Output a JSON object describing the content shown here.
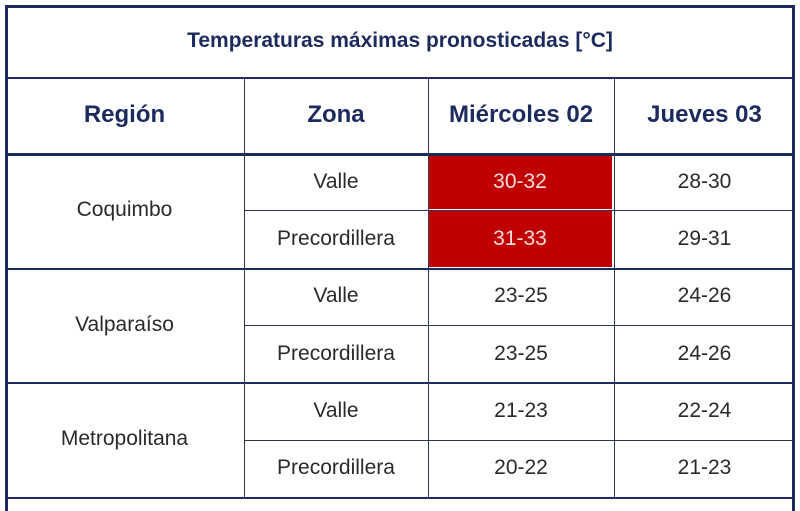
{
  "table": {
    "title": "Temperaturas máximas pronosticadas [°C]",
    "columns": [
      "Región",
      "Zona",
      "Miércoles 02",
      "Jueves 03"
    ],
    "regions": [
      {
        "name": "Coquimbo",
        "rows": [
          {
            "zone": "Valle",
            "cells": [
              {
                "text": "30-32",
                "fill": "#c00000"
              },
              "28-30"
            ]
          },
          {
            "zone": "Precordillera",
            "cells": [
              {
                "text": "31-33",
                "fill": "#c00000"
              },
              "29-31"
            ]
          }
        ]
      },
      {
        "name": "Valparaíso",
        "rows": [
          {
            "zone": "Valle",
            "cells": [
              "23-25",
              "24-26"
            ]
          },
          {
            "zone": "Precordillera",
            "cells": [
              "23-25",
              "24-26"
            ]
          }
        ]
      },
      {
        "name": "Metropolitana",
        "rows": [
          {
            "zone": "Valle",
            "cells": [
              "21-23",
              "22-24"
            ]
          },
          {
            "zone": "Precordillera",
            "cells": [
              "20-22",
              "21-23"
            ]
          }
        ]
      }
    ]
  }
}
